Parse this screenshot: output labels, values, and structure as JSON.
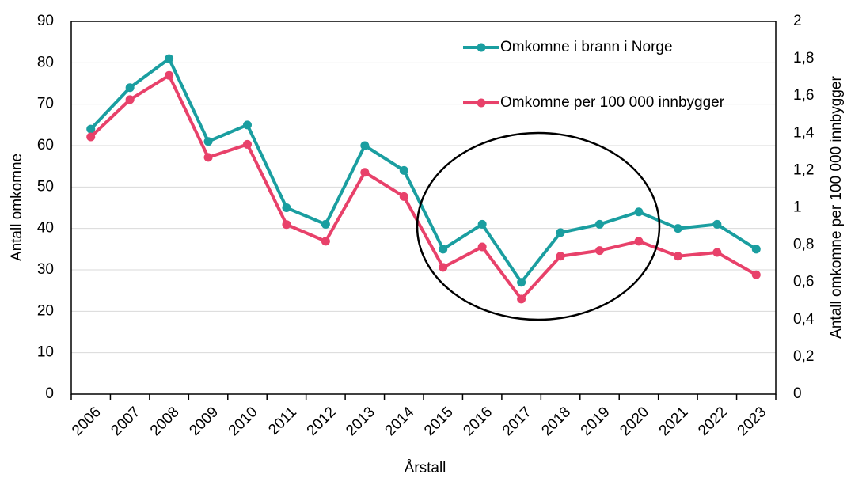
{
  "chart_data": {
    "type": "line",
    "x_label": "Årstall",
    "y_label": "Antall omkomne",
    "y2_label": "Antall omkomne per 100 000 innbygger",
    "categories": [
      "2006",
      "2007",
      "2008",
      "2009",
      "2010",
      "2011",
      "2012",
      "2013",
      "2014",
      "2015",
      "2016",
      "2017",
      "2018",
      "2019",
      "2020",
      "2021",
      "2022",
      "2023"
    ],
    "series": [
      {
        "name": "Omkomne i brann i Norge",
        "color": "#1a9ea0",
        "values": [
          64,
          74,
          81,
          61,
          65,
          45,
          41,
          60,
          54,
          35,
          41,
          27,
          39,
          41,
          44,
          40,
          41,
          35
        ]
      },
      {
        "name": "Omkomne per 100 000 innbygger",
        "color": "#e8416a",
        "axis": "y2",
        "values": [
          1.38,
          1.58,
          1.71,
          1.27,
          1.34,
          0.91,
          0.82,
          1.19,
          1.06,
          0.68,
          0.79,
          0.51,
          0.74,
          0.77,
          0.82,
          0.74,
          0.76,
          0.64
        ]
      }
    ],
    "ylim": [
      0,
      90
    ],
    "yticks": [
      0,
      10,
      20,
      30,
      40,
      50,
      60,
      70,
      80,
      90
    ],
    "y2lim": [
      0,
      2
    ],
    "y2ticks": [
      0,
      {
        "value": 0.2,
        "label": "0,2"
      },
      {
        "value": 0.4,
        "label": "0,4"
      },
      {
        "value": 0.6,
        "label": "0,6"
      },
      {
        "value": 0.8,
        "label": "0,8"
      },
      1,
      {
        "value": 1.2,
        "label": "1,2"
      },
      {
        "value": 1.4,
        "label": "1,4"
      },
      {
        "value": 1.6,
        "label": "1,6"
      },
      {
        "value": 1.8,
        "label": "1,8"
      },
      2
    ],
    "grid": true,
    "legend": "upper right"
  }
}
